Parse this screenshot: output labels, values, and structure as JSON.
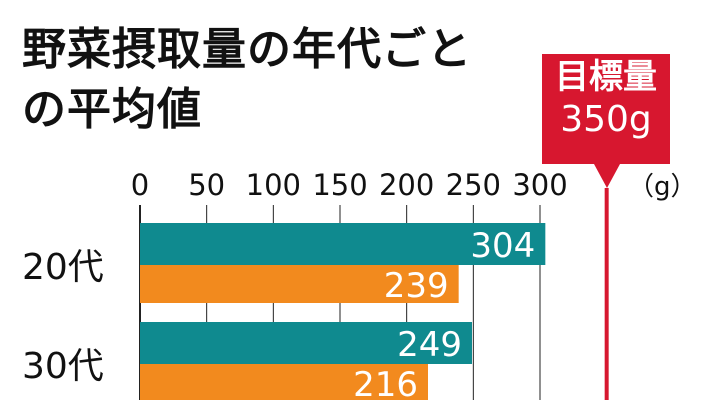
{
  "title_lines": [
    "野菜摂取量の年代ごと",
    "の平均値"
  ],
  "target": {
    "label": "目標量",
    "value_text": "350g",
    "value": 350
  },
  "colors": {
    "series_1": "#0f8a8f",
    "series_2": "#f28a1e",
    "target": "#d7172f",
    "grid": "#222222"
  },
  "chart_data": {
    "type": "bar",
    "orientation": "horizontal",
    "unit_label": "（g）",
    "x_ticks": [
      0,
      50,
      100,
      150,
      200,
      250,
      300
    ],
    "xlim": [
      0,
      350
    ],
    "grid": true,
    "categories": [
      "20代",
      "30代"
    ],
    "series": [
      {
        "values": [
          304,
          249
        ]
      },
      {
        "values": [
          239,
          216
        ]
      }
    ],
    "reference_line": 350
  }
}
